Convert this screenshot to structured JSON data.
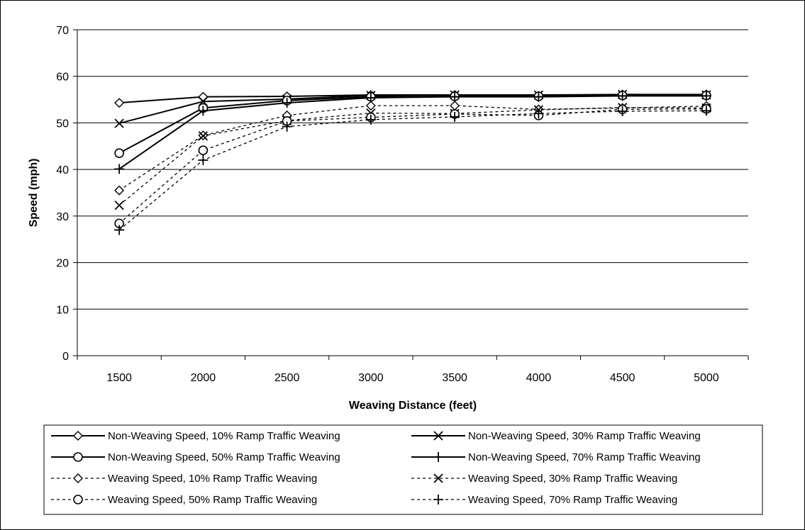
{
  "chart_data": {
    "type": "line",
    "xlabel": "Weaving Distance (feet)",
    "ylabel": "Speed (mph)",
    "categories": [
      "1500",
      "2000",
      "2500",
      "3000",
      "3500",
      "4000",
      "4500",
      "5000"
    ],
    "ylim": [
      0,
      70
    ],
    "yticks": [
      0,
      10,
      20,
      30,
      40,
      50,
      60,
      70
    ],
    "grid": "horizontal",
    "legend_position": "bottom",
    "series": [
      {
        "name": "Non-Weaving Speed, 10% Ramp Traffic Weaving",
        "marker": "diamond",
        "dash": "solid",
        "values": [
          54.3,
          55.6,
          55.7,
          56.0,
          56.0,
          55.8,
          56.1,
          56.1
        ]
      },
      {
        "name": "Non-Weaving Speed, 30% Ramp Traffic Weaving",
        "marker": "x",
        "dash": "solid",
        "values": [
          49.9,
          54.6,
          55.1,
          55.9,
          56.0,
          56.0,
          56.1,
          56.0
        ]
      },
      {
        "name": "Non-Weaving Speed, 50% Ramp Traffic Weaving",
        "marker": "circle",
        "dash": "solid",
        "values": [
          43.5,
          53.2,
          54.8,
          55.6,
          55.7,
          55.7,
          55.9,
          55.9
        ]
      },
      {
        "name": "Non-Weaving Speed, 70% Ramp Traffic Weaving",
        "marker": "plus",
        "dash": "solid",
        "values": [
          40.1,
          52.6,
          54.3,
          55.4,
          55.6,
          55.6,
          55.8,
          55.8
        ]
      },
      {
        "name": "Weaving Speed, 10% Ramp Traffic Weaving",
        "marker": "diamond",
        "dash": "dashed",
        "values": [
          35.5,
          47.3,
          51.6,
          53.7,
          53.7,
          52.9,
          53.2,
          53.6
        ]
      },
      {
        "name": "Weaving Speed, 30% Ramp Traffic Weaving",
        "marker": "x",
        "dash": "dashed",
        "values": [
          32.3,
          47.2,
          50.5,
          52.1,
          52.0,
          52.8,
          53.3,
          53.2
        ]
      },
      {
        "name": "Weaving Speed, 50% Ramp Traffic Weaving",
        "marker": "circle",
        "dash": "dashed",
        "values": [
          28.4,
          44.1,
          50.4,
          51.2,
          51.9,
          51.6,
          52.9,
          53.0
        ]
      },
      {
        "name": "Weaving Speed, 70% Ramp Traffic Weaving",
        "marker": "plus",
        "dash": "dashed",
        "values": [
          27.0,
          42.0,
          49.2,
          50.7,
          51.3,
          52.0,
          52.5,
          52.6
        ]
      }
    ]
  }
}
